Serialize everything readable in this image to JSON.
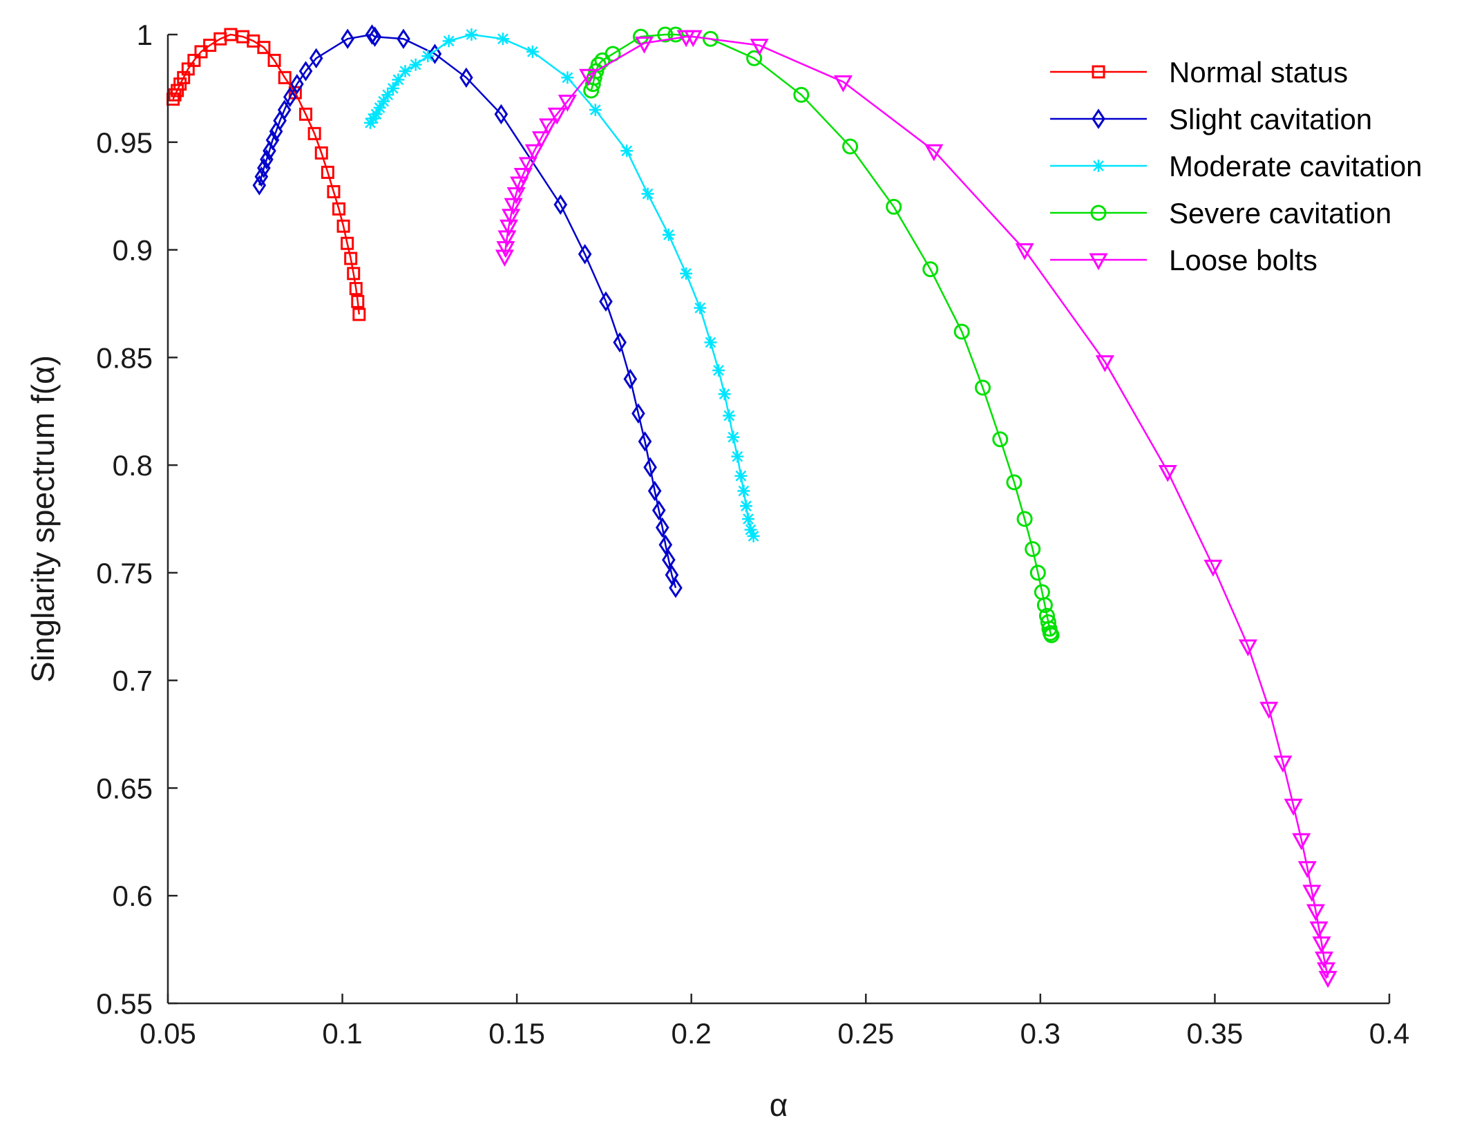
{
  "chart_data": {
    "type": "line",
    "title": "",
    "xlabel": "α",
    "ylabel": "Singlarity spectrum f(α)",
    "xlim": [
      0.05,
      0.4
    ],
    "ylim": [
      0.55,
      1.0
    ],
    "xticks": [
      "0.05",
      "0.1",
      "0.15",
      "0.2",
      "0.25",
      "0.3",
      "0.35",
      "0.4"
    ],
    "yticks": [
      "0.55",
      "0.6",
      "0.65",
      "0.7",
      "0.75",
      "0.8",
      "0.85",
      "0.9",
      "0.95",
      "1"
    ],
    "legend_position": "top-right",
    "grid": false,
    "series": [
      {
        "name": "Normal status",
        "color": "#ff0000",
        "marker": "square",
        "points": [
          [
            0.0515,
            0.97
          ],
          [
            0.052,
            0.972
          ],
          [
            0.0527,
            0.974
          ],
          [
            0.0535,
            0.977
          ],
          [
            0.0545,
            0.98
          ],
          [
            0.0558,
            0.984
          ],
          [
            0.0575,
            0.988
          ],
          [
            0.0595,
            0.992
          ],
          [
            0.062,
            0.995
          ],
          [
            0.065,
            0.998
          ],
          [
            0.068,
            1.0
          ],
          [
            0.0715,
            0.999
          ],
          [
            0.0745,
            0.997
          ],
          [
            0.0775,
            0.994
          ],
          [
            0.0805,
            0.988
          ],
          [
            0.0835,
            0.98
          ],
          [
            0.0865,
            0.973
          ],
          [
            0.0895,
            0.963
          ],
          [
            0.092,
            0.954
          ],
          [
            0.094,
            0.945
          ],
          [
            0.0958,
            0.936
          ],
          [
            0.0975,
            0.927
          ],
          [
            0.099,
            0.919
          ],
          [
            0.1003,
            0.911
          ],
          [
            0.1014,
            0.903
          ],
          [
            0.1024,
            0.896
          ],
          [
            0.1032,
            0.889
          ],
          [
            0.1039,
            0.882
          ],
          [
            0.1044,
            0.876
          ],
          [
            0.1048,
            0.87
          ]
        ]
      },
      {
        "name": "Slight cavitation",
        "color": "#0000cc",
        "marker": "diamond",
        "points": [
          [
            0.0762,
            0.93
          ],
          [
            0.0768,
            0.934
          ],
          [
            0.0775,
            0.938
          ],
          [
            0.0783,
            0.942
          ],
          [
            0.0791,
            0.946
          ],
          [
            0.08,
            0.951
          ],
          [
            0.081,
            0.955
          ],
          [
            0.0821,
            0.96
          ],
          [
            0.0834,
            0.965
          ],
          [
            0.085,
            0.971
          ],
          [
            0.087,
            0.977
          ],
          [
            0.0895,
            0.983
          ],
          [
            0.0925,
            0.989
          ],
          [
            0.1015,
            0.998
          ],
          [
            0.1085,
            1.0
          ],
          [
            0.1093,
            0.999
          ],
          [
            0.1175,
            0.998
          ],
          [
            0.1265,
            0.991
          ],
          [
            0.1355,
            0.98
          ],
          [
            0.1455,
            0.963
          ],
          [
            0.1625,
            0.921
          ],
          [
            0.1695,
            0.898
          ],
          [
            0.1755,
            0.876
          ],
          [
            0.1795,
            0.857
          ],
          [
            0.1825,
            0.84
          ],
          [
            0.1848,
            0.824
          ],
          [
            0.1867,
            0.811
          ],
          [
            0.1882,
            0.799
          ],
          [
            0.1895,
            0.788
          ],
          [
            0.1907,
            0.779
          ],
          [
            0.1917,
            0.771
          ],
          [
            0.1926,
            0.763
          ],
          [
            0.1935,
            0.756
          ],
          [
            0.1944,
            0.749
          ],
          [
            0.1955,
            0.743
          ]
        ]
      },
      {
        "name": "Moderate cavitation",
        "color": "#00e5ff",
        "marker": "asterisk",
        "points": [
          [
            0.108,
            0.959
          ],
          [
            0.1088,
            0.961
          ],
          [
            0.1097,
            0.963
          ],
          [
            0.1107,
            0.966
          ],
          [
            0.1118,
            0.969
          ],
          [
            0.113,
            0.972
          ],
          [
            0.1145,
            0.975
          ],
          [
            0.116,
            0.979
          ],
          [
            0.118,
            0.983
          ],
          [
            0.121,
            0.986
          ],
          [
            0.1245,
            0.99
          ],
          [
            0.1305,
            0.997
          ],
          [
            0.137,
            1.0
          ],
          [
            0.146,
            0.998
          ],
          [
            0.1545,
            0.992
          ],
          [
            0.1645,
            0.98
          ],
          [
            0.1725,
            0.965
          ],
          [
            0.1815,
            0.946
          ],
          [
            0.1875,
            0.926
          ],
          [
            0.1935,
            0.907
          ],
          [
            0.1985,
            0.889
          ],
          [
            0.2025,
            0.873
          ],
          [
            0.2055,
            0.857
          ],
          [
            0.2078,
            0.844
          ],
          [
            0.2095,
            0.833
          ],
          [
            0.2108,
            0.823
          ],
          [
            0.212,
            0.813
          ],
          [
            0.2132,
            0.804
          ],
          [
            0.2142,
            0.795
          ],
          [
            0.215,
            0.788
          ],
          [
            0.2157,
            0.781
          ],
          [
            0.2163,
            0.775
          ],
          [
            0.217,
            0.77
          ],
          [
            0.2178,
            0.767
          ]
        ]
      },
      {
        "name": "Severe cavitation",
        "color": "#00e000",
        "marker": "circle",
        "points": [
          [
            0.1713,
            0.974
          ],
          [
            0.1718,
            0.977
          ],
          [
            0.1722,
            0.98
          ],
          [
            0.1727,
            0.983
          ],
          [
            0.1734,
            0.986
          ],
          [
            0.1745,
            0.988
          ],
          [
            0.1775,
            0.991
          ],
          [
            0.1855,
            0.999
          ],
          [
            0.1925,
            1.0
          ],
          [
            0.1955,
            1.0
          ],
          [
            0.2055,
            0.998
          ],
          [
            0.218,
            0.989
          ],
          [
            0.2315,
            0.972
          ],
          [
            0.2455,
            0.948
          ],
          [
            0.258,
            0.92
          ],
          [
            0.2685,
            0.891
          ],
          [
            0.2775,
            0.862
          ],
          [
            0.2835,
            0.836
          ],
          [
            0.2885,
            0.812
          ],
          [
            0.2925,
            0.792
          ],
          [
            0.2955,
            0.775
          ],
          [
            0.2978,
            0.761
          ],
          [
            0.2993,
            0.75
          ],
          [
            0.3005,
            0.741
          ],
          [
            0.3013,
            0.735
          ],
          [
            0.3019,
            0.73
          ],
          [
            0.3023,
            0.727
          ],
          [
            0.3026,
            0.724
          ],
          [
            0.3029,
            0.722
          ],
          [
            0.3032,
            0.721
          ]
        ]
      },
      {
        "name": "Loose bolts",
        "color": "#ff00ff",
        "marker": "triangle-down",
        "points": [
          [
            0.1465,
            0.897
          ],
          [
            0.1468,
            0.901
          ],
          [
            0.1472,
            0.906
          ],
          [
            0.1477,
            0.911
          ],
          [
            0.1483,
            0.916
          ],
          [
            0.149,
            0.921
          ],
          [
            0.1498,
            0.926
          ],
          [
            0.1507,
            0.931
          ],
          [
            0.1518,
            0.935
          ],
          [
            0.1532,
            0.94
          ],
          [
            0.155,
            0.946
          ],
          [
            0.157,
            0.952
          ],
          [
            0.159,
            0.958
          ],
          [
            0.1615,
            0.963
          ],
          [
            0.1645,
            0.969
          ],
          [
            0.1705,
            0.981
          ],
          [
            0.1865,
            0.996
          ],
          [
            0.1985,
            0.999
          ],
          [
            0.2005,
            0.999
          ],
          [
            0.2195,
            0.995
          ],
          [
            0.2435,
            0.978
          ],
          [
            0.2695,
            0.946
          ],
          [
            0.2955,
            0.9
          ],
          [
            0.3185,
            0.848
          ],
          [
            0.3365,
            0.797
          ],
          [
            0.3495,
            0.753
          ],
          [
            0.3595,
            0.716
          ],
          [
            0.3655,
            0.687
          ],
          [
            0.3695,
            0.662
          ],
          [
            0.3725,
            0.642
          ],
          [
            0.3748,
            0.626
          ],
          [
            0.3765,
            0.613
          ],
          [
            0.3778,
            0.602
          ],
          [
            0.3789,
            0.593
          ],
          [
            0.3798,
            0.585
          ],
          [
            0.3806,
            0.578
          ],
          [
            0.3813,
            0.571
          ],
          [
            0.3819,
            0.566
          ],
          [
            0.3824,
            0.562
          ]
        ]
      }
    ]
  }
}
